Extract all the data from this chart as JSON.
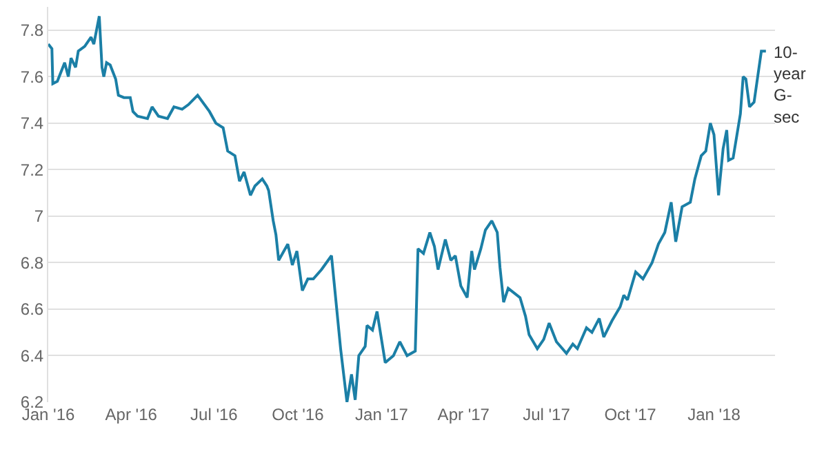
{
  "chart_data": {
    "type": "line",
    "xlim": [
      "2016-01-01",
      "2018-03-09"
    ],
    "ylim": [
      6.2,
      7.9
    ],
    "xticks": [
      {
        "value": "2016-01-01",
        "label": "Jan '16"
      },
      {
        "value": "2016-04-01",
        "label": "Apr '16"
      },
      {
        "value": "2016-07-01",
        "label": "Jul '16"
      },
      {
        "value": "2016-10-01",
        "label": "Oct '16"
      },
      {
        "value": "2017-01-01",
        "label": "Jan '17"
      },
      {
        "value": "2017-04-01",
        "label": "Apr '17"
      },
      {
        "value": "2017-07-01",
        "label": "Jul '17"
      },
      {
        "value": "2017-10-01",
        "label": "Oct '17"
      },
      {
        "value": "2018-01-01",
        "label": "Jan '18"
      }
    ],
    "yticks": [
      6.2,
      6.4,
      6.6,
      6.8,
      7,
      7.2,
      7.4,
      7.6,
      7.8
    ],
    "grid": "y",
    "legend": false,
    "marker": "none",
    "line_style": "solid",
    "x": [
      "2016-01-01",
      "2016-01-05",
      "2016-01-06",
      "2016-01-11",
      "2016-01-19",
      "2016-01-23",
      "2016-01-26",
      "2016-01-31",
      "2016-02-03",
      "2016-02-10",
      "2016-02-17",
      "2016-02-20",
      "2016-02-26",
      "2016-02-29",
      "2016-03-02",
      "2016-03-05",
      "2016-03-09",
      "2016-03-15",
      "2016-03-18",
      "2016-03-24",
      "2016-03-31",
      "2016-04-03",
      "2016-04-08",
      "2016-04-19",
      "2016-04-24",
      "2016-05-01",
      "2016-05-11",
      "2016-05-18",
      "2016-05-27",
      "2016-06-03",
      "2016-06-13",
      "2016-06-26",
      "2016-07-03",
      "2016-07-11",
      "2016-07-16",
      "2016-07-24",
      "2016-07-29",
      "2016-08-03",
      "2016-08-10",
      "2016-08-15",
      "2016-08-23",
      "2016-08-28",
      "2016-08-30",
      "2016-09-04",
      "2016-09-07",
      "2016-09-10",
      "2016-09-20",
      "2016-09-25",
      "2016-09-30",
      "2016-10-06",
      "2016-10-12",
      "2016-10-18",
      "2016-10-27",
      "2016-11-07",
      "2016-11-11",
      "2016-11-17",
      "2016-11-24",
      "2016-11-29",
      "2016-12-03",
      "2016-12-07",
      "2016-12-14",
      "2016-12-16",
      "2016-12-22",
      "2016-12-27",
      "2017-01-05",
      "2017-01-14",
      "2017-01-21",
      "2017-01-29",
      "2017-02-07",
      "2017-02-10",
      "2017-02-16",
      "2017-02-23",
      "2017-02-28",
      "2017-03-04",
      "2017-03-12",
      "2017-03-18",
      "2017-03-23",
      "2017-03-29",
      "2017-04-05",
      "2017-04-10",
      "2017-04-13",
      "2017-04-20",
      "2017-04-25",
      "2017-05-02",
      "2017-05-08",
      "2017-05-11",
      "2017-05-15",
      "2017-05-20",
      "2017-06-02",
      "2017-06-08",
      "2017-06-12",
      "2017-06-21",
      "2017-06-28",
      "2017-07-04",
      "2017-07-12",
      "2017-07-23",
      "2017-07-30",
      "2017-08-04",
      "2017-08-14",
      "2017-08-20",
      "2017-08-28",
      "2017-09-02",
      "2017-09-11",
      "2017-09-20",
      "2017-09-24",
      "2017-09-28",
      "2017-10-07",
      "2017-10-15",
      "2017-10-25",
      "2017-11-01",
      "2017-11-08",
      "2017-11-15",
      "2017-11-20",
      "2017-11-27",
      "2017-12-06",
      "2017-12-11",
      "2017-12-18",
      "2017-12-23",
      "2017-12-28",
      "2018-01-01",
      "2018-01-06",
      "2018-01-11",
      "2018-01-15",
      "2018-01-17",
      "2018-01-22",
      "2018-01-30",
      "2018-02-02",
      "2018-02-05",
      "2018-02-09",
      "2018-02-14",
      "2018-02-22",
      "2018-02-27"
    ],
    "series": [
      {
        "name": "10-year G-sec",
        "color": "#1b7fa6",
        "values": [
          7.74,
          7.72,
          7.57,
          7.58,
          7.66,
          7.6,
          7.68,
          7.64,
          7.71,
          7.73,
          7.77,
          7.74,
          7.86,
          7.64,
          7.6,
          7.66,
          7.65,
          7.59,
          7.52,
          7.51,
          7.51,
          7.45,
          7.43,
          7.42,
          7.47,
          7.43,
          7.42,
          7.47,
          7.46,
          7.48,
          7.52,
          7.45,
          7.4,
          7.38,
          7.28,
          7.26,
          7.15,
          7.19,
          7.09,
          7.13,
          7.16,
          7.13,
          7.11,
          6.98,
          6.92,
          6.81,
          6.88,
          6.79,
          6.85,
          6.68,
          6.73,
          6.73,
          6.77,
          6.83,
          6.67,
          6.43,
          6.2,
          6.32,
          6.21,
          6.4,
          6.44,
          6.53,
          6.51,
          6.59,
          6.37,
          6.4,
          6.46,
          6.4,
          6.42,
          6.86,
          6.84,
          6.93,
          6.87,
          6.77,
          6.9,
          6.81,
          6.83,
          6.7,
          6.65,
          6.85,
          6.77,
          6.86,
          6.94,
          6.98,
          6.93,
          6.78,
          6.63,
          6.69,
          6.65,
          6.57,
          6.49,
          6.43,
          6.47,
          6.54,
          6.46,
          6.41,
          6.45,
          6.43,
          6.52,
          6.5,
          6.56,
          6.48,
          6.55,
          6.61,
          6.66,
          6.64,
          6.76,
          6.73,
          6.8,
          6.88,
          6.93,
          7.06,
          6.89,
          7.04,
          7.06,
          7.16,
          7.26,
          7.28,
          7.4,
          7.35,
          7.09,
          7.29,
          7.37,
          7.24,
          7.25,
          7.44,
          7.6,
          7.59,
          7.47,
          7.49,
          7.71,
          7.71
        ]
      }
    ]
  }
}
